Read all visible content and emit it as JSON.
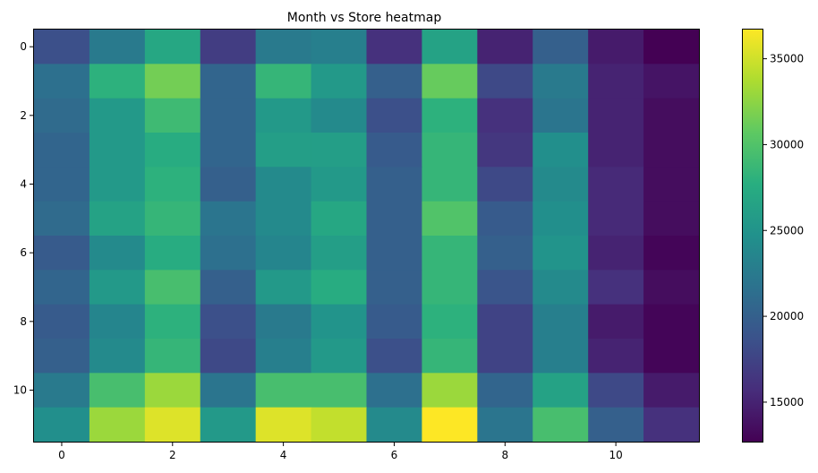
{
  "chart_data": {
    "type": "heatmap",
    "title": "Month vs Store heatmap",
    "xlabel": "",
    "ylabel": "",
    "x_ticks": [
      "0",
      "2",
      "4",
      "6",
      "8",
      "10"
    ],
    "y_ticks": [
      "0",
      "2",
      "4",
      "6",
      "8",
      "10"
    ],
    "colormap": "viridis",
    "vmin": 12700,
    "vmax": 36700,
    "colorbar_ticks": [
      "15000",
      "20000",
      "25000",
      "30000",
      "35000"
    ],
    "rows": 12,
    "cols": 12,
    "values": [
      [
        18500,
        22500,
        27000,
        17000,
        22500,
        23000,
        16000,
        26500,
        15000,
        20000,
        14500,
        12700
      ],
      [
        21500,
        28000,
        31500,
        20500,
        28500,
        25500,
        20000,
        31000,
        18000,
        22500,
        15000,
        14000
      ],
      [
        21000,
        25500,
        29000,
        20500,
        25500,
        24000,
        18500,
        28000,
        16000,
        22000,
        15000,
        13500
      ],
      [
        20500,
        25500,
        27500,
        20500,
        26000,
        26000,
        19500,
        28500,
        16500,
        24500,
        15000,
        13500
      ],
      [
        20500,
        25500,
        28000,
        20000,
        24000,
        25500,
        20000,
        28500,
        18000,
        24000,
        15500,
        13500
      ],
      [
        21000,
        26500,
        28500,
        22000,
        24000,
        27000,
        20000,
        30000,
        19500,
        24500,
        15500,
        13500
      ],
      [
        19500,
        24000,
        27500,
        21500,
        23500,
        26000,
        20000,
        28500,
        20000,
        25000,
        15000,
        13000
      ],
      [
        20500,
        25500,
        29500,
        20000,
        25500,
        27500,
        20000,
        28500,
        19000,
        24000,
        16000,
        13500
      ],
      [
        19500,
        23500,
        28000,
        18500,
        22500,
        25000,
        19500,
        28000,
        17500,
        23000,
        14500,
        13000
      ],
      [
        20000,
        24000,
        28500,
        18000,
        23000,
        25500,
        18500,
        28500,
        17500,
        23000,
        15000,
        13000
      ],
      [
        22500,
        29500,
        33000,
        22000,
        29500,
        29500,
        21500,
        33000,
        20500,
        26500,
        18000,
        14500
      ],
      [
        24500,
        33000,
        35500,
        25500,
        35500,
        34500,
        24000,
        36700,
        22000,
        29500,
        20000,
        16000
      ]
    ]
  }
}
